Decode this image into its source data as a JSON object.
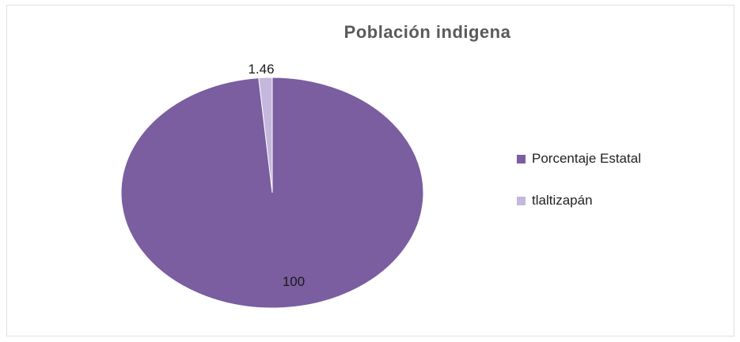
{
  "chart_data": {
    "type": "pie",
    "title": "Población indigena",
    "slices": [
      {
        "label": "Porcentaje Estatal",
        "value": 100,
        "data_label": "100",
        "color": "#7a5ea0"
      },
      {
        "label": "tlaltizapán",
        "value": 1.46,
        "data_label": "1.46",
        "color": "#c5b8dc"
      }
    ],
    "legend_position": "right"
  }
}
